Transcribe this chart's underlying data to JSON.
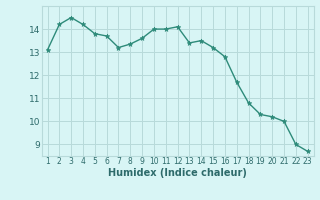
{
  "x": [
    1,
    2,
    3,
    4,
    5,
    6,
    7,
    8,
    9,
    10,
    11,
    12,
    13,
    14,
    15,
    16,
    17,
    18,
    19,
    20,
    21,
    22,
    23
  ],
  "y": [
    13.1,
    14.2,
    14.5,
    14.2,
    13.8,
    13.7,
    13.2,
    13.35,
    13.6,
    14.0,
    14.0,
    14.1,
    13.4,
    13.5,
    13.2,
    12.8,
    11.7,
    10.8,
    10.3,
    10.2,
    10.0,
    9.0,
    8.7
  ],
  "line_color": "#2e8b7a",
  "marker": "*",
  "marker_size": 3.5,
  "bg_color": "#d8f5f5",
  "grid_color": "#b8dada",
  "xlabel": "Humidex (Indice chaleur)",
  "ylim": [
    8.5,
    15.0
  ],
  "xlim": [
    0.5,
    23.5
  ],
  "yticks": [
    9,
    10,
    11,
    12,
    13,
    14
  ],
  "xticks": [
    1,
    2,
    3,
    4,
    5,
    6,
    7,
    8,
    9,
    10,
    11,
    12,
    13,
    14,
    15,
    16,
    17,
    18,
    19,
    20,
    21,
    22,
    23
  ],
  "xlabel_fontsize": 7,
  "xlabel_color": "#2e6b6b",
  "ytick_fontsize": 6.5,
  "xtick_fontsize": 5.5
}
